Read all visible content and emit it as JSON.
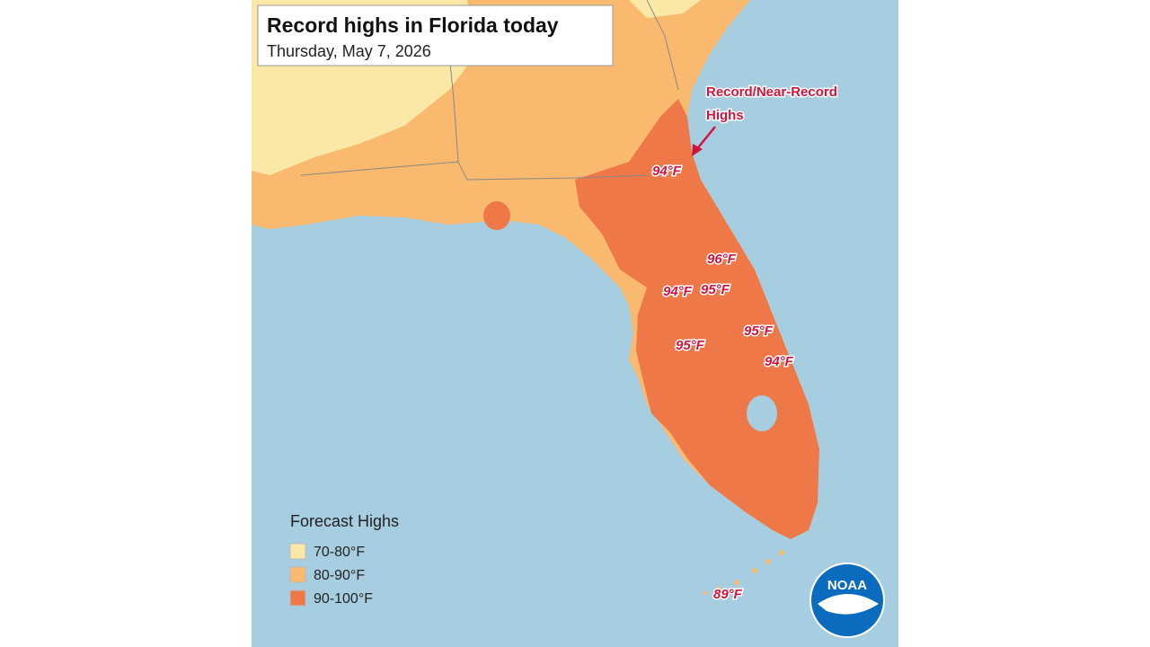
{
  "header": {
    "title": "Record highs in Florida today",
    "date": "Thursday, May 7, 2026"
  },
  "annotation": [
    "Record/Near-Record",
    "Highs"
  ],
  "temperature_labels": [
    "94°F",
    "96°F",
    "94°F",
    "95°F",
    "95°F",
    "95°F",
    "94°F",
    "89°F"
  ],
  "legend": {
    "title": "Forecast Highs",
    "items": [
      "70-80°F",
      "80-90°F",
      "90-100°F"
    ]
  },
  "logo": "NOAA"
}
